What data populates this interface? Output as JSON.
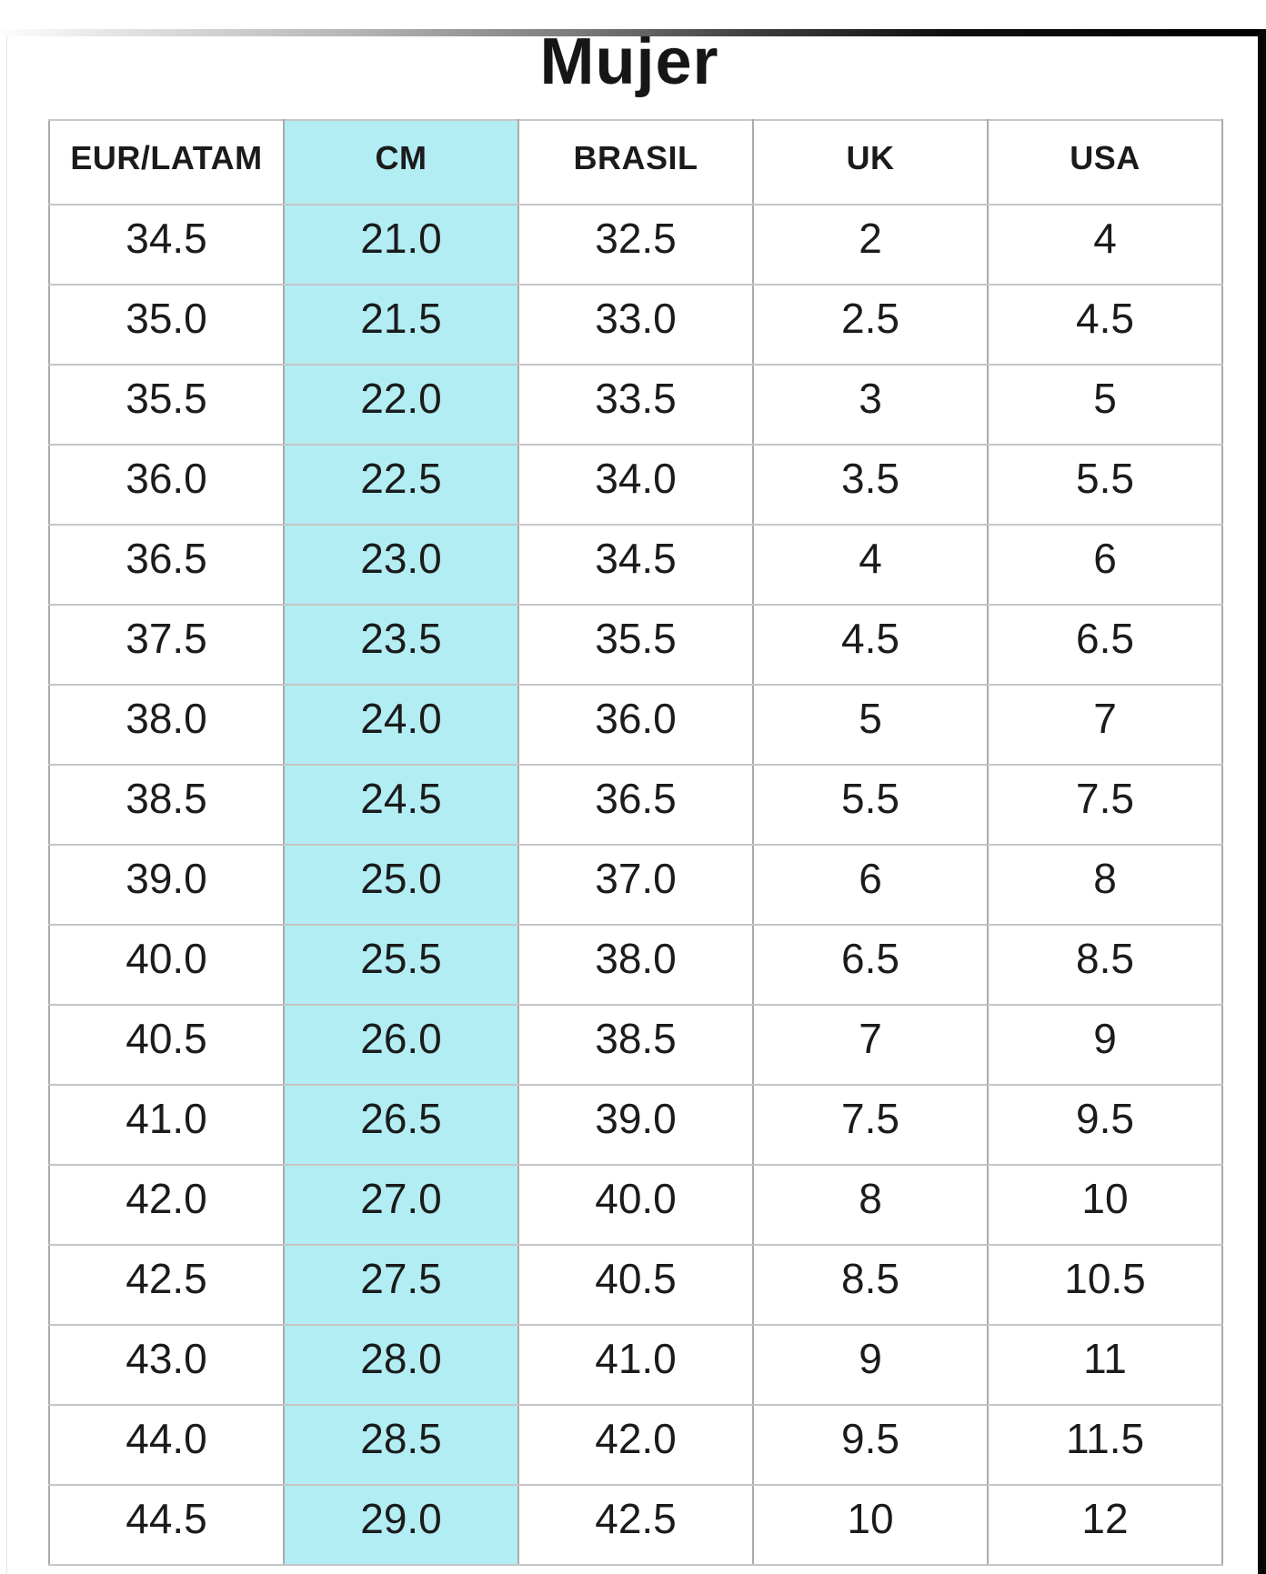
{
  "title": "Mujer",
  "table": {
    "headers": [
      "EUR/LATAM",
      "CM",
      "BRASIL",
      "UK",
      "USA"
    ],
    "highlight_column_index": 1,
    "rows": [
      [
        "34.5",
        "21.0",
        "32.5",
        "2",
        "4"
      ],
      [
        "35.0",
        "21.5",
        "33.0",
        "2.5",
        "4.5"
      ],
      [
        "35.5",
        "22.0",
        "33.5",
        "3",
        "5"
      ],
      [
        "36.0",
        "22.5",
        "34.0",
        "3.5",
        "5.5"
      ],
      [
        "36.5",
        "23.0",
        "34.5",
        "4",
        "6"
      ],
      [
        "37.5",
        "23.5",
        "35.5",
        "4.5",
        "6.5"
      ],
      [
        "38.0",
        "24.0",
        "36.0",
        "5",
        "7"
      ],
      [
        "38.5",
        "24.5",
        "36.5",
        "5.5",
        "7.5"
      ],
      [
        "39.0",
        "25.0",
        "37.0",
        "6",
        "8"
      ],
      [
        "40.0",
        "25.5",
        "38.0",
        "6.5",
        "8.5"
      ],
      [
        "40.5",
        "26.0",
        "38.5",
        "7",
        "9"
      ],
      [
        "41.0",
        "26.5",
        "39.0",
        "7.5",
        "9.5"
      ],
      [
        "42.0",
        "27.0",
        "40.0",
        "8",
        "10"
      ],
      [
        "42.5",
        "27.5",
        "40.5",
        "8.5",
        "10.5"
      ],
      [
        "43.0",
        "28.0",
        "41.0",
        "9",
        "11"
      ],
      [
        "44.0",
        "28.5",
        "42.0",
        "9.5",
        "11.5"
      ],
      [
        "44.5",
        "29.0",
        "42.5",
        "10",
        "12"
      ]
    ]
  },
  "colors": {
    "highlight": "#b2edf4",
    "text": "#1b1b1b",
    "row_border": "#c6c6c6",
    "column_border": "#ababab",
    "edge_bar": "#060606"
  }
}
